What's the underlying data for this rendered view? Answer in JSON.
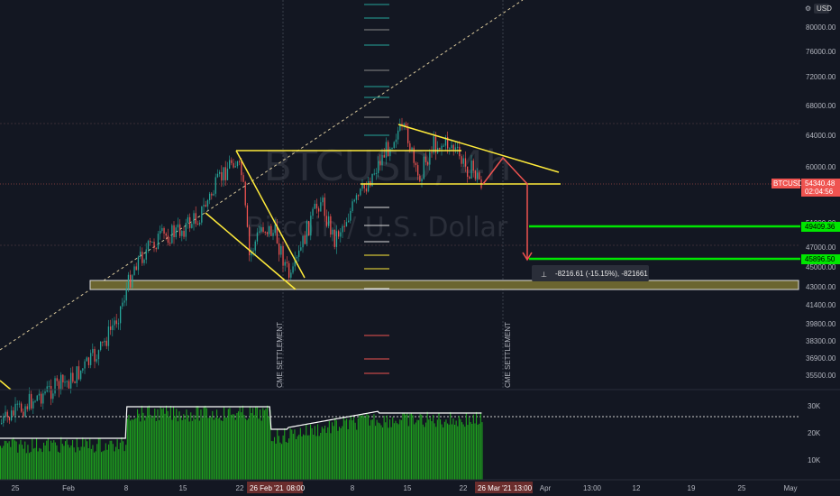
{
  "watermark": {
    "symbol": "BTCUSD, 4h",
    "name": "Bitcoin / U.S. Dollar"
  },
  "currency": "USD",
  "price_axis": {
    "ticks": [
      "80000.00",
      "76000.00",
      "72000.00",
      "68000.00",
      "64000.00",
      "60000.00",
      "56000.00",
      "51000.00",
      "47000.00",
      "45000.00",
      "43000.00",
      "41400.00",
      "39800.00",
      "38300.00",
      "36900.00",
      "35500.00"
    ],
    "symbol_tag": "BTCUSD",
    "last_price": "54340.48",
    "countdown": "02:04:56",
    "level_1": "49409.36",
    "level_2": "45896.50",
    "colors": {
      "last": "#ef5350",
      "level": "#00e600"
    }
  },
  "volume_axis": {
    "ticks": [
      "30K",
      "20K",
      "10K"
    ]
  },
  "time_axis": {
    "ticks": [
      "25",
      "Feb",
      "8",
      "15",
      "22",
      "1",
      "8",
      "15",
      "22",
      "Apr",
      "13:00",
      "12",
      "19",
      "25",
      "May"
    ],
    "cursor_1": "26 Feb '21",
    "cursor_1_time": "08:00",
    "cursor_2": "26 Mar '21",
    "cursor_2_time": "13:00"
  },
  "annotations": {
    "measure": "-8216.61 (-15.15%), -821661",
    "settlement_1": "CME SETTLEMENT",
    "settlement_2": "CME SETTLEMENT"
  },
  "colors": {
    "bg": "#131722",
    "up": "#26a69a",
    "down": "#ef5350",
    "pattern": "#ffeb3b",
    "target": "#00e600",
    "support_zone": "#6b6530",
    "volume": "#1ea01e"
  },
  "chart_data": {
    "type": "candlestick",
    "price_axis_range": [
      35000,
      80000
    ],
    "support_zone": [
      43000,
      44200
    ],
    "target_levels": [
      49409.36,
      45896.5
    ],
    "last_price": 54340.48,
    "projected_move": -8216.61,
    "projected_move_pct": -15.15
  }
}
